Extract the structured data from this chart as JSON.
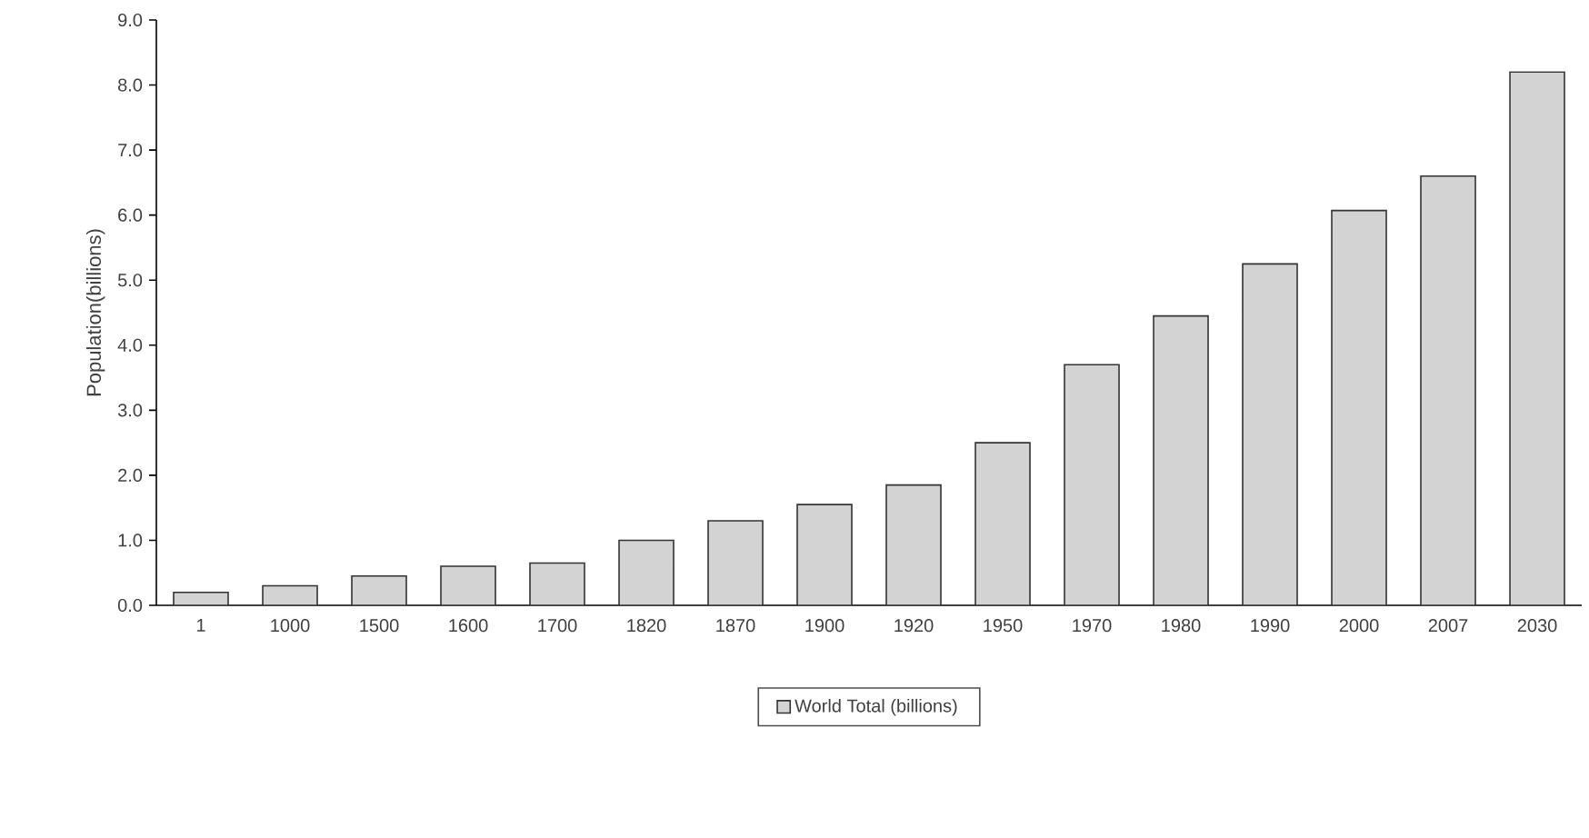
{
  "chart_data": {
    "type": "bar",
    "ylabel": "Population(billions)",
    "categories": [
      "1",
      "1000",
      "1500",
      "1600",
      "1700",
      "1820",
      "1870",
      "1900",
      "1920",
      "1950",
      "1970",
      "1980",
      "1990",
      "2000",
      "2007",
      "2030"
    ],
    "series": [
      {
        "name": "World Total (billions)",
        "color": "#d3d3d3",
        "values": [
          0.2,
          0.3,
          0.45,
          0.6,
          0.65,
          1.0,
          1.3,
          1.55,
          1.85,
          2.5,
          3.7,
          4.45,
          5.25,
          6.07,
          6.6,
          8.2
        ]
      }
    ],
    "ylim": [
      0,
      9
    ],
    "yticks": [
      {
        "value": 0,
        "label": "0.0"
      },
      {
        "value": 1,
        "label": "1.0"
      },
      {
        "value": 2,
        "label": "2.0"
      },
      {
        "value": 3,
        "label": "3.0"
      },
      {
        "value": 4,
        "label": "4.0"
      },
      {
        "value": 5,
        "label": "5.0"
      },
      {
        "value": 6,
        "label": "6.0"
      },
      {
        "value": 7,
        "label": "7.0"
      },
      {
        "value": 8,
        "label": "8.0"
      },
      {
        "value": 9,
        "label": "9.0"
      }
    ],
    "grid": false,
    "legend": "bottom"
  }
}
